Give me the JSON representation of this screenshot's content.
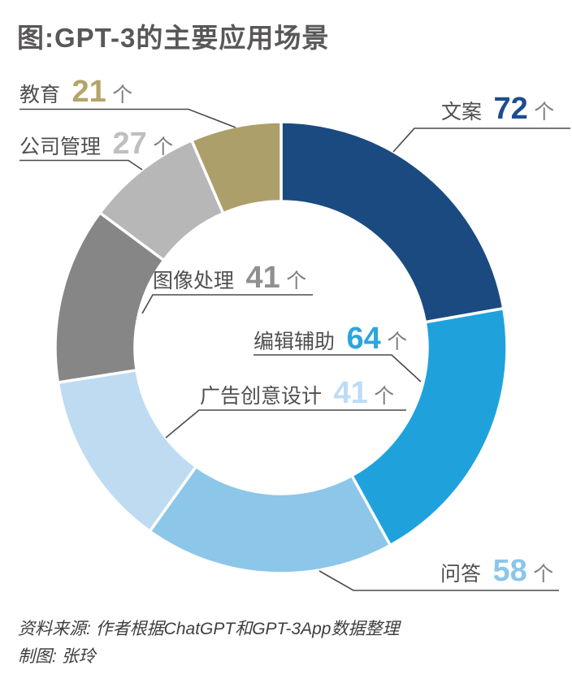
{
  "title": "图:GPT-3的主要应用场景",
  "chart_data": {
    "type": "pie",
    "subtype": "donut",
    "title": "图:GPT-3的主要应用场景",
    "unit_suffix": "个",
    "total": 324,
    "start_angle_deg": -90,
    "direction": "clockwise",
    "legend_position": "labels-with-leader-lines",
    "segments": [
      {
        "label": "文案",
        "value": 72,
        "color": "#1a4a80",
        "number_color": "#1d4d8f"
      },
      {
        "label": "编辑辅助",
        "value": 64,
        "color": "#1fa2dc",
        "number_color": "#2aa6dd"
      },
      {
        "label": "问答",
        "value": 58,
        "color": "#8cc6e9",
        "number_color": "#8ac6ea"
      },
      {
        "label": "广告创意设计",
        "value": 41,
        "color": "#bedbf2",
        "number_color": "#bedbf3"
      },
      {
        "label": "图像处理",
        "value": 41,
        "color": "#868686",
        "number_color": "#909090"
      },
      {
        "label": "公司管理",
        "value": 27,
        "color": "#b7b7b7",
        "number_color": "#bfbfbf"
      },
      {
        "label": "教育",
        "value": 21,
        "color": "#ad9f69",
        "number_color": "#b3a469"
      }
    ]
  },
  "footer": {
    "source": "资料来源: 作者根据ChatGPT和GPT-3App数据整理",
    "credit": "制图: 张玲"
  }
}
